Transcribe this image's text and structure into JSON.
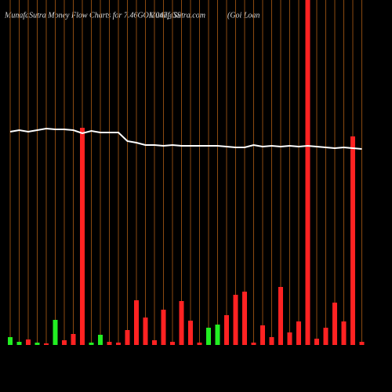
{
  "chart_data": {
    "type": "bar",
    "title": "MunafaSutra  Money Flow  Charts for 7.46GOI2047_GS",
    "subtitle": "MunafaSutra.com",
    "note": "(Goi  Loan",
    "categories": [
      null,
      null,
      null,
      null,
      null,
      null,
      null,
      null,
      null,
      null,
      null,
      null,
      null,
      null,
      null,
      null,
      null,
      null,
      null,
      null,
      null,
      null,
      null,
      null,
      null,
      null,
      null,
      null,
      null,
      null,
      null,
      null,
      null,
      null,
      null,
      null,
      null,
      null,
      null,
      null
    ],
    "values": [
      10,
      4,
      7,
      3,
      2,
      32,
      6,
      14,
      277,
      3,
      13,
      4,
      3,
      19,
      57,
      35,
      6,
      45,
      4,
      56,
      31,
      3,
      22,
      26,
      38,
      64,
      68,
      3,
      25,
      10,
      74,
      16,
      30,
      440,
      8,
      22,
      54,
      30,
      266,
      4
    ],
    "colors": [
      "#22ee22",
      "#22ee22",
      "#ff2222",
      "#22ee22",
      "#ff2222",
      "#22ee22",
      "#ff2222",
      "#ff2222",
      "#ff2222",
      "#22ee22",
      "#22ee22",
      "#ff2222",
      "#ff2222",
      "#ff2222",
      "#ff2222",
      "#ff2222",
      "#ff2222",
      "#ff2222",
      "#ff2222",
      "#ff2222",
      "#ff2222",
      "#ff2222",
      "#22ee22",
      "#22ee22",
      "#ff2222",
      "#ff2222",
      "#ff2222",
      "#ff2222",
      "#ff2222",
      "#ff2222",
      "#ff2222",
      "#ff2222",
      "#ff2222",
      "#ff2222",
      "#ff2222",
      "#ff2222",
      "#ff2222",
      "#ff2222",
      "#ff2222",
      "#ff2222"
    ],
    "line": {
      "color": "#ffffff",
      "values": [
        272,
        274,
        272,
        274,
        276,
        275,
        275,
        274,
        270,
        273,
        271,
        271,
        271,
        260,
        258,
        255,
        255,
        254,
        255,
        254,
        254,
        254,
        254,
        254,
        253,
        252,
        252,
        255,
        253,
        254,
        253,
        254,
        253,
        254,
        253,
        252,
        251,
        252,
        251,
        250
      ]
    },
    "grid_color": "#8b4a10",
    "ylim": [
      0,
      440
    ]
  }
}
